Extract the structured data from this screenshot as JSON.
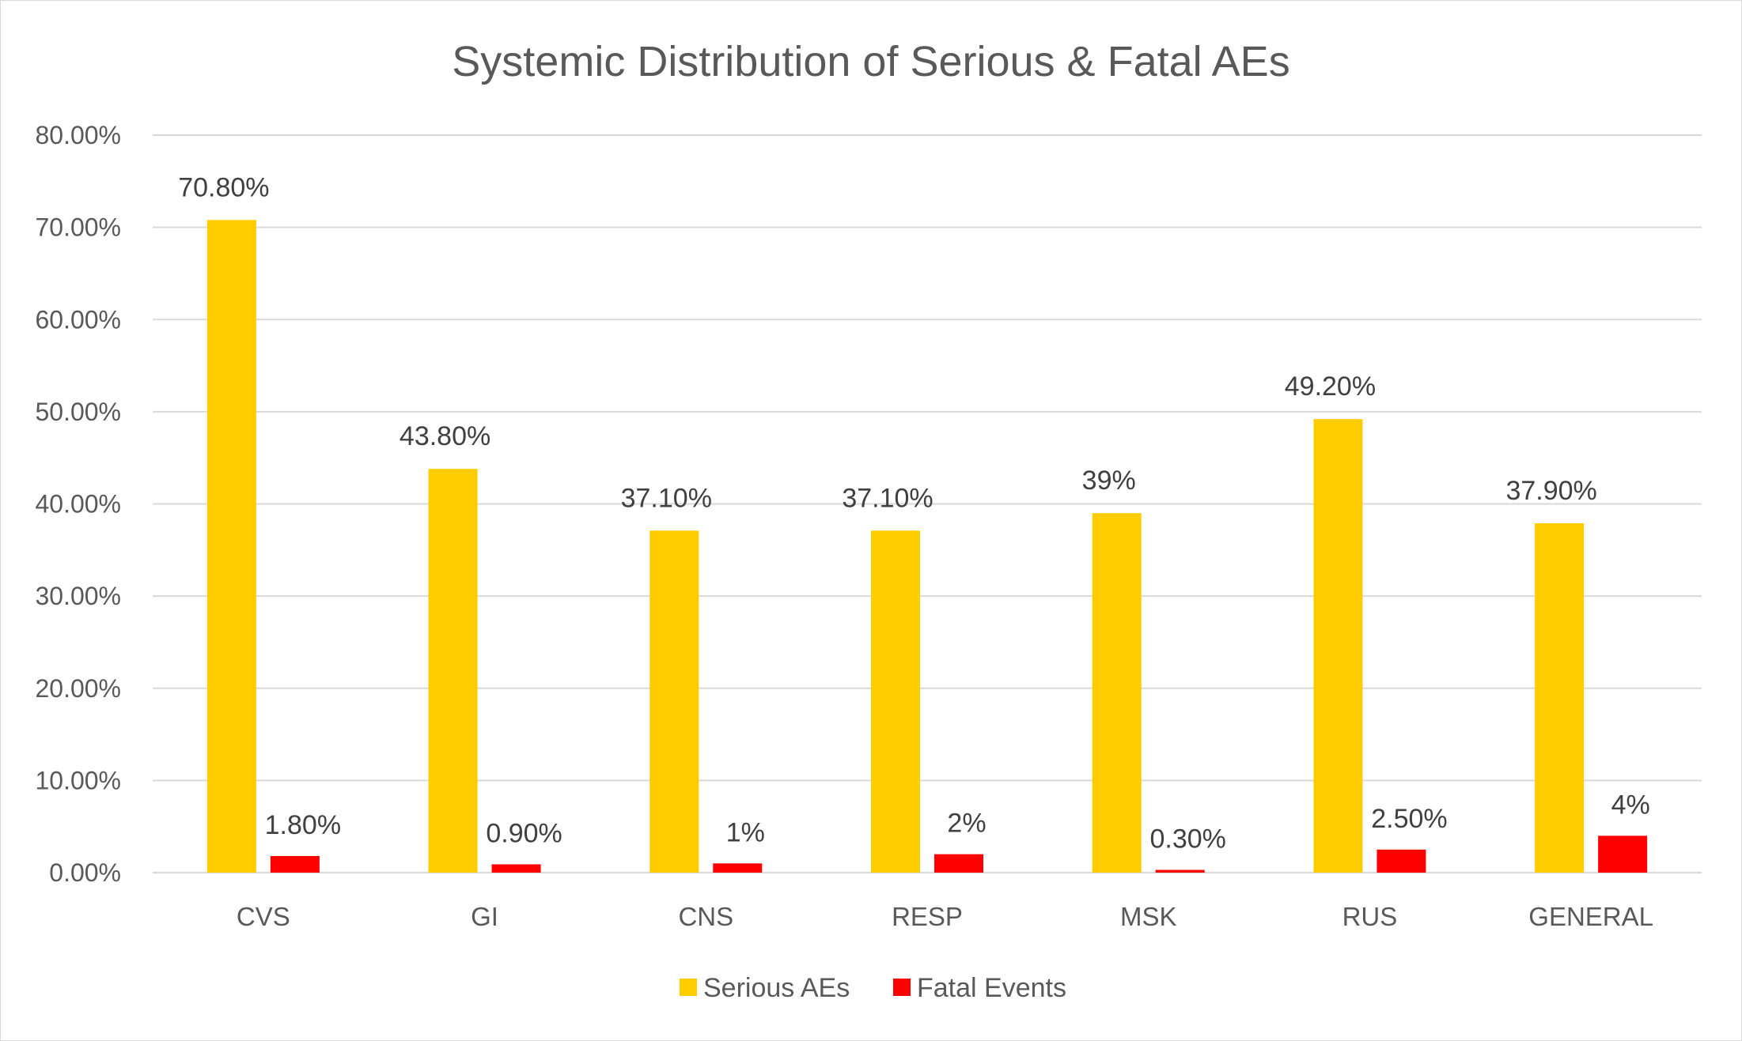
{
  "chart_data": {
    "type": "bar",
    "title": "Systemic Distribution of Serious & Fatal AEs",
    "xlabel": "",
    "ylabel": "",
    "ylim": [
      0,
      80
    ],
    "yticks": [
      "0.00%",
      "10.00%",
      "20.00%",
      "30.00%",
      "40.00%",
      "50.00%",
      "60.00%",
      "70.00%",
      "80.00%"
    ],
    "categories": [
      "CVS",
      "GI",
      "CNS",
      "RESP",
      "MSK",
      "RUS",
      "GENERAL"
    ],
    "series": [
      {
        "name": "Serious AEs",
        "color": "#FFCC00",
        "values": [
          70.8,
          43.8,
          37.1,
          37.1,
          39,
          49.2,
          37.9
        ],
        "labels": [
          "70.80%",
          "43.80%",
          "37.10%",
          "37.10%",
          "39%",
          "49.20%",
          "37.90%"
        ]
      },
      {
        "name": "Fatal Events",
        "color": "#FF0000",
        "values": [
          1.8,
          0.9,
          1,
          2,
          0.3,
          2.5,
          4
        ],
        "labels": [
          "1.80%",
          "0.90%",
          "1%",
          "2%",
          "0.30%",
          "2.50%",
          "4%"
        ]
      }
    ],
    "legend_position": "bottom",
    "grid": true
  }
}
